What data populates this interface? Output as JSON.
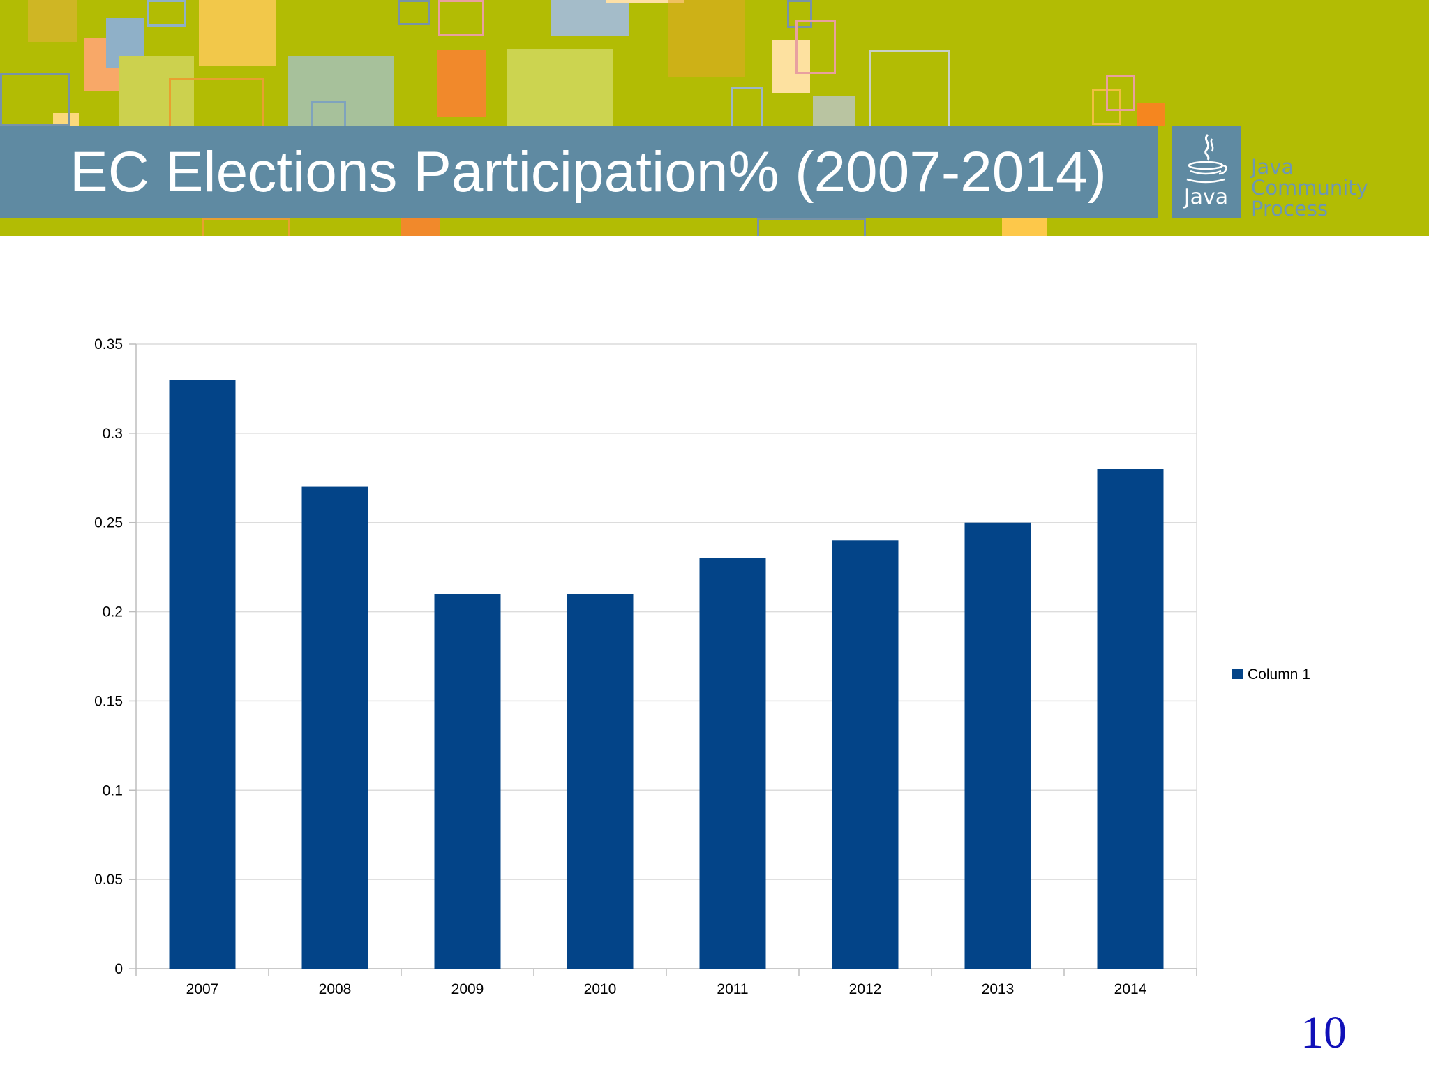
{
  "slide": {
    "title": "EC Elections Participation% (2007-2014)",
    "page_number": "10"
  },
  "logo": {
    "icon": "java-coffee-cup-icon",
    "java_word": "Java",
    "lines": [
      "Java",
      "Community",
      "Process"
    ]
  },
  "colors": {
    "banner_background": "#b2bc04",
    "title_bar": "#5f8aa2",
    "bar_fill": "#034488",
    "page_number": "#1010b8"
  },
  "chart_data": {
    "type": "bar",
    "categories": [
      "2007",
      "2008",
      "2009",
      "2010",
      "2011",
      "2012",
      "2013",
      "2014"
    ],
    "series": [
      {
        "name": "Column 1",
        "values": [
          0.33,
          0.27,
          0.21,
          0.21,
          0.23,
          0.24,
          0.25,
          0.28
        ]
      }
    ],
    "yticks": [
      "0",
      "0.05",
      "0.1",
      "0.15",
      "0.2",
      "0.25",
      "0.3",
      "0.35"
    ],
    "ylim": [
      0,
      0.35
    ],
    "grid": true,
    "legend": "right"
  }
}
